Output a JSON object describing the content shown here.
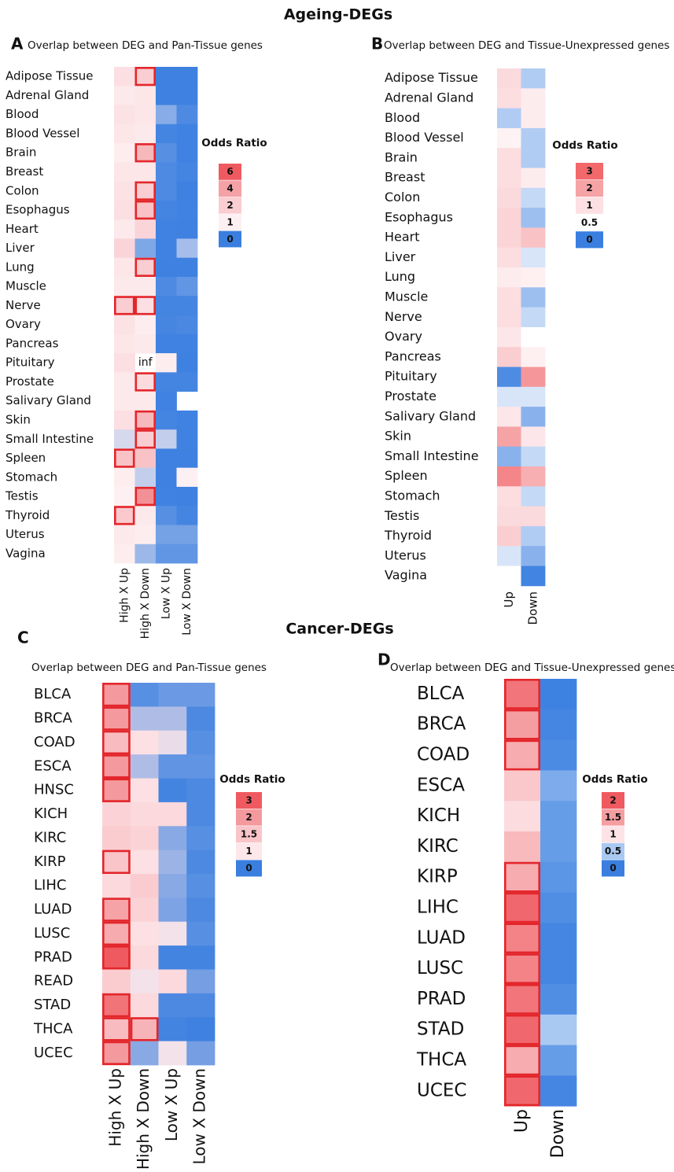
{
  "sections": [
    "Ageing-DEGs",
    "Cancer-DEGs"
  ],
  "chart_data": [
    {
      "type": "heatmap",
      "panel": "A",
      "title": "Overlap between DEG and Pan-Tissue genes",
      "rows": [
        "Adipose Tissue",
        "Adrenal Gland",
        "Blood",
        "Blood Vessel",
        "Brain",
        "Breast",
        "Colon",
        "Esophagus",
        "Heart",
        "Liver",
        "Lung",
        "Muscle",
        "Nerve",
        "Ovary",
        "Pancreas",
        "Pituitary",
        "Prostate",
        "Salivary Gland",
        "Skin",
        "Small Intestine",
        "Spleen",
        "Stomach",
        "Testis",
        "Thyroid",
        "Uterus",
        "Vagina"
      ],
      "columns": [
        "High X Up",
        "High X Down",
        "Low X Up",
        "Low X Down"
      ],
      "values": [
        [
          1.5,
          2,
          0.02,
          0.02
        ],
        [
          1.2,
          1.3,
          0.02,
          0.02
        ],
        [
          1.4,
          1.3,
          0.4,
          0.1
        ],
        [
          1.3,
          1.2,
          0.05,
          0.03
        ],
        [
          1.1,
          3,
          0.15,
          0.03
        ],
        [
          1.3,
          1.3,
          0.1,
          0.05
        ],
        [
          1.4,
          2,
          0.1,
          0.02
        ],
        [
          1.5,
          2.5,
          0.05,
          0.03
        ],
        [
          1.2,
          1.8,
          0.03,
          0.02
        ],
        [
          1.8,
          0.35,
          0.03,
          0.55
        ],
        [
          1.3,
          2,
          0.02,
          0.02
        ],
        [
          1.2,
          1.2,
          0.1,
          0.2
        ],
        [
          2,
          1.5,
          0.05,
          0.05
        ],
        [
          1.4,
          1.1,
          0.06,
          0.08
        ],
        [
          1.3,
          1.2,
          0.03,
          0.03
        ],
        [
          1.5,
          null,
          1.1,
          0.02
        ],
        [
          1.2,
          1.6,
          0.05,
          0.05
        ],
        [
          1.2,
          1.2,
          0.03,
          null
        ],
        [
          1.5,
          3,
          0.05,
          0.03
        ],
        [
          0.8,
          2,
          0.7,
          0.03
        ],
        [
          2.5,
          2.5,
          0.02,
          0.02
        ],
        [
          1.1,
          0.7,
          0.02,
          1
        ],
        [
          1,
          4.5,
          0.03,
          0.02
        ],
        [
          2.2,
          1.2,
          0.15,
          0.05
        ],
        [
          1.2,
          1.1,
          0.3,
          0.3
        ],
        [
          1.1,
          0.5,
          0.2,
          0.2
        ]
      ],
      "value_labels": [
        [
          null,
          null,
          null,
          null
        ],
        [
          null,
          null,
          null,
          null
        ],
        [
          null,
          null,
          null,
          null
        ],
        [
          null,
          null,
          null,
          null
        ],
        [
          null,
          null,
          null,
          null
        ],
        [
          null,
          null,
          null,
          null
        ],
        [
          null,
          null,
          null,
          null
        ],
        [
          null,
          null,
          null,
          null
        ],
        [
          null,
          null,
          null,
          null
        ],
        [
          null,
          null,
          null,
          null
        ],
        [
          null,
          null,
          null,
          null
        ],
        [
          null,
          null,
          null,
          null
        ],
        [
          null,
          null,
          null,
          null
        ],
        [
          null,
          null,
          null,
          null
        ],
        [
          null,
          null,
          null,
          null
        ],
        [
          null,
          "inf",
          null,
          null
        ],
        [
          null,
          null,
          null,
          null
        ],
        [
          null,
          null,
          null,
          null
        ],
        [
          null,
          null,
          null,
          null
        ],
        [
          null,
          null,
          null,
          null
        ],
        [
          null,
          null,
          null,
          null
        ],
        [
          null,
          null,
          null,
          null
        ],
        [
          null,
          null,
          null,
          null
        ],
        [
          null,
          null,
          null,
          null
        ],
        [
          null,
          null,
          null,
          null
        ],
        [
          null,
          null,
          null,
          null
        ]
      ],
      "highlight": [
        [
          false,
          true,
          false,
          false
        ],
        [
          false,
          false,
          false,
          false
        ],
        [
          false,
          false,
          false,
          false
        ],
        [
          false,
          false,
          false,
          false
        ],
        [
          false,
          true,
          false,
          false
        ],
        [
          false,
          false,
          false,
          false
        ],
        [
          false,
          true,
          false,
          false
        ],
        [
          false,
          true,
          false,
          false
        ],
        [
          false,
          false,
          false,
          false
        ],
        [
          false,
          false,
          false,
          false
        ],
        [
          false,
          true,
          false,
          false
        ],
        [
          false,
          false,
          false,
          false
        ],
        [
          true,
          true,
          false,
          false
        ],
        [
          false,
          false,
          false,
          false
        ],
        [
          false,
          false,
          false,
          false
        ],
        [
          false,
          false,
          false,
          false
        ],
        [
          false,
          true,
          false,
          false
        ],
        [
          false,
          false,
          false,
          false
        ],
        [
          false,
          true,
          false,
          false
        ],
        [
          false,
          true,
          false,
          false
        ],
        [
          true,
          false,
          false,
          false
        ],
        [
          false,
          false,
          false,
          false
        ],
        [
          false,
          true,
          false,
          false
        ],
        [
          true,
          false,
          false,
          false
        ],
        [
          false,
          false,
          false,
          false
        ],
        [
          false,
          false,
          false,
          false
        ]
      ],
      "legend_title": "Odds Ratio",
      "legend": [
        6,
        4,
        2,
        1,
        0
      ],
      "legend_colors": [
        "#ef5a60",
        "#f4a2a6",
        "#f9cdd1",
        "#fdf0f2",
        "#3a7fe0"
      ]
    },
    {
      "type": "heatmap",
      "panel": "B",
      "title": "Overlap between DEG and Tissue-Unexpressed genes",
      "rows": [
        "Adipose Tissue",
        "Adrenal Gland",
        "Blood",
        "Blood Vessel",
        "Brain",
        "Breast",
        "Colon",
        "Esophagus",
        "Heart",
        "Liver",
        "Lung",
        "Muscle",
        "Nerve",
        "Ovary",
        "Pancreas",
        "Pituitary",
        "Prostate",
        "Salivary Gland",
        "Skin",
        "Small Intestine",
        "Spleen",
        "Stomach",
        "Testis",
        "Thyroid",
        "Uterus",
        "Vagina"
      ],
      "columns": [
        "Up",
        "Down"
      ],
      "values": [
        [
          1.1,
          0.3
        ],
        [
          1.05,
          0.8
        ],
        [
          0.3,
          0.8
        ],
        [
          0.7,
          0.3
        ],
        [
          1.05,
          0.3
        ],
        [
          1.05,
          0.8
        ],
        [
          1.1,
          0.35
        ],
        [
          1.2,
          0.25
        ],
        [
          1.2,
          1.5
        ],
        [
          1.05,
          0.4
        ],
        [
          0.8,
          0.75
        ],
        [
          1.05,
          0.25
        ],
        [
          1.05,
          0.35
        ],
        [
          0.9,
          0.5
        ],
        [
          1.3,
          0.75
        ],
        [
          0.05,
          2.2
        ],
        [
          0.4,
          0.4
        ],
        [
          0.9,
          0.2
        ],
        [
          2,
          0.9
        ],
        [
          0.2,
          0.35
        ],
        [
          2.5,
          1.8
        ],
        [
          1.05,
          0.35
        ],
        [
          1.1,
          1.1
        ],
        [
          1.3,
          0.3
        ],
        [
          0.4,
          0.2
        ],
        [
          0.5,
          0.02
        ]
      ],
      "legend_title": "Odds Ratio",
      "legend": [
        3,
        2,
        1,
        0.5,
        0
      ],
      "legend_colors": [
        "#f2686b",
        "#f6a3a6",
        "#fce0e3",
        "#ffffff",
        "#3a7fe0"
      ]
    },
    {
      "type": "heatmap",
      "panel": "C",
      "title": "Overlap between DEG and Pan-Tissue genes",
      "rows": [
        "BLCA",
        "BRCA",
        "COAD",
        "ESCA",
        "HNSC",
        "KICH",
        "KIRC",
        "KIRP",
        "LIHC",
        "LUAD",
        "LUSC",
        "PRAD",
        "READ",
        "STAD",
        "THCA",
        "UCEC"
      ],
      "columns": [
        "High X Up",
        "High X Down",
        "Low X Up",
        "Low X Down"
      ],
      "values": [
        [
          2,
          0.15,
          0.25,
          0.25
        ],
        [
          2,
          0.6,
          0.6,
          0.1
        ],
        [
          1.6,
          1.1,
          0.9,
          0.15
        ],
        [
          2,
          0.6,
          0.2,
          0.2
        ],
        [
          2,
          1.1,
          0.05,
          0.1
        ],
        [
          1.3,
          1.2,
          1.2,
          0.1
        ],
        [
          1.4,
          1.3,
          0.4,
          0.15
        ],
        [
          1.5,
          1.1,
          0.5,
          0.1
        ],
        [
          1.2,
          1.4,
          0.4,
          0.15
        ],
        [
          1.9,
          1.3,
          0.35,
          0.1
        ],
        [
          1.8,
          1.1,
          0.95,
          0.15
        ],
        [
          3,
          1.2,
          0.05,
          0.05
        ],
        [
          1.4,
          0.95,
          1.2,
          0.3
        ],
        [
          2.6,
          1.2,
          0.1,
          0.1
        ],
        [
          1.6,
          1.7,
          0.05,
          0.02
        ],
        [
          2,
          0.4,
          0.95,
          0.3
        ]
      ],
      "highlight": [
        [
          true,
          false,
          false,
          false
        ],
        [
          true,
          false,
          false,
          false
        ],
        [
          true,
          false,
          false,
          false
        ],
        [
          true,
          false,
          false,
          false
        ],
        [
          true,
          false,
          false,
          false
        ],
        [
          false,
          false,
          false,
          false
        ],
        [
          false,
          false,
          false,
          false
        ],
        [
          true,
          false,
          false,
          false
        ],
        [
          false,
          false,
          false,
          false
        ],
        [
          true,
          false,
          false,
          false
        ],
        [
          true,
          false,
          false,
          false
        ],
        [
          true,
          false,
          false,
          false
        ],
        [
          false,
          false,
          false,
          false
        ],
        [
          true,
          false,
          false,
          false
        ],
        [
          true,
          true,
          false,
          false
        ],
        [
          true,
          false,
          false,
          false
        ]
      ],
      "legend_title": "Odds Ratio",
      "legend": [
        3,
        2,
        1.5,
        1,
        0
      ],
      "legend_colors": [
        "#ef5a60",
        "#f49a9e",
        "#f9c5c9",
        "#fde7ea",
        "#3a7fe0"
      ]
    },
    {
      "type": "heatmap",
      "panel": "D",
      "title": "Overlap between DEG and Tissue-Unexpressed genes",
      "rows": [
        "BLCA",
        "BRCA",
        "COAD",
        "ESCA",
        "KICH",
        "KIRC",
        "KIRP",
        "LIHC",
        "LUAD",
        "LUSC",
        "PRAD",
        "STAD",
        "THCA",
        "UCEC"
      ],
      "columns": [
        "Up",
        "Down"
      ],
      "values": [
        [
          1.8,
          0.02
        ],
        [
          1.5,
          0.05
        ],
        [
          1.4,
          0.08
        ],
        [
          1.2,
          0.3
        ],
        [
          1.05,
          0.2
        ],
        [
          1.3,
          0.2
        ],
        [
          1.4,
          0.15
        ],
        [
          1.9,
          0.1
        ],
        [
          1.7,
          0.05
        ],
        [
          1.7,
          0.05
        ],
        [
          1.8,
          0.1
        ],
        [
          1.9,
          0.5
        ],
        [
          1.4,
          0.2
        ],
        [
          1.9,
          0.05
        ]
      ],
      "highlight": [
        [
          true,
          false
        ],
        [
          true,
          false
        ],
        [
          true,
          false
        ],
        [
          false,
          false
        ],
        [
          false,
          false
        ],
        [
          false,
          false
        ],
        [
          true,
          false
        ],
        [
          true,
          false
        ],
        [
          true,
          false
        ],
        [
          true,
          false
        ],
        [
          true,
          false
        ],
        [
          true,
          false
        ],
        [
          true,
          false
        ],
        [
          true,
          false
        ]
      ],
      "legend_title": "Odds Ratio",
      "legend": [
        2,
        1.5,
        1,
        0.5,
        0
      ],
      "legend_colors": [
        "#ef5a60",
        "#f59ea1",
        "#fde3e6",
        "#a9c9f2",
        "#3a7fe0"
      ]
    }
  ]
}
